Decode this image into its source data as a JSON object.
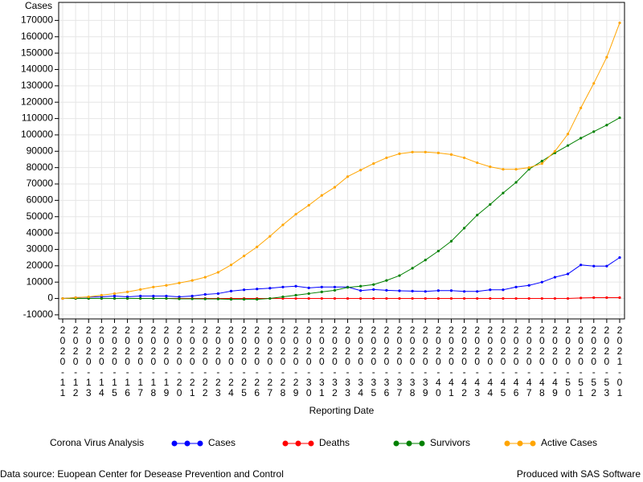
{
  "chart_data": {
    "type": "line",
    "y_label": "Cases",
    "x_label": "Reporting Date",
    "legend_title": "Corona Virus Analysis",
    "source": "Data source: Euopean Center for Desease Prevention and Control",
    "credit": "Produced with SAS Software",
    "categories": [
      "2020-11",
      "2020-12",
      "2020-13",
      "2020-14",
      "2020-15",
      "2020-16",
      "2020-17",
      "2020-18",
      "2020-19",
      "2020-20",
      "2020-21",
      "2020-22",
      "2020-23",
      "2020-24",
      "2020-25",
      "2020-26",
      "2020-27",
      "2020-28",
      "2020-29",
      "2020-30",
      "2020-31",
      "2020-32",
      "2020-33",
      "2020-34",
      "2020-35",
      "2020-36",
      "2020-37",
      "2020-38",
      "2020-39",
      "2020-40",
      "2020-41",
      "2020-42",
      "2020-43",
      "2020-44",
      "2020-45",
      "2020-46",
      "2020-47",
      "2020-48",
      "2020-49",
      "2020-50",
      "2020-51",
      "2020-52",
      "2020-53",
      "2021-01"
    ],
    "series": [
      {
        "name": "Cases",
        "color": "#0000ff",
        "values": [
          0,
          500,
          800,
          1000,
          1500,
          1000,
          1500,
          1500,
          1500,
          1000,
          1500,
          2500,
          3000,
          4500,
          5300,
          5800,
          6300,
          7000,
          7500,
          6500,
          7000,
          7000,
          7000,
          4800,
          5500,
          5000,
          4700,
          4500,
          4300,
          4800,
          4800,
          4300,
          4300,
          5300,
          5300,
          7000,
          8000,
          10000,
          13000,
          15000,
          20500,
          19800,
          19800,
          25000
        ]
      },
      {
        "name": "Deaths",
        "color": "#ff0000",
        "values": [
          0,
          0,
          0,
          0,
          0,
          0,
          0,
          0,
          0,
          0,
          0,
          0,
          0,
          0,
          0,
          0,
          0,
          0,
          0,
          0,
          0,
          0,
          0,
          0,
          0,
          0,
          0,
          0,
          0,
          0,
          0,
          0,
          0,
          0,
          0,
          0,
          0,
          0,
          0,
          0,
          300,
          500,
          500,
          500
        ]
      },
      {
        "name": "Survivors",
        "color": "#008000",
        "values": [
          0,
          0,
          0,
          0,
          0,
          0,
          0,
          0,
          0,
          -200,
          -200,
          -300,
          -300,
          -500,
          -500,
          -500,
          0,
          1000,
          2000,
          3000,
          4000,
          5000,
          6800,
          7500,
          8500,
          11000,
          14000,
          18500,
          23500,
          29000,
          35000,
          43000,
          51000,
          57500,
          64500,
          71000,
          79000,
          84000,
          89000,
          93500,
          98000,
          102000,
          106000,
          110500
        ]
      },
      {
        "name": "Active Cases",
        "color": "#ffa500",
        "values": [
          0,
          500,
          1000,
          2000,
          3000,
          4000,
          5500,
          7000,
          8000,
          9500,
          11000,
          13000,
          16000,
          20500,
          26000,
          31500,
          38000,
          45000,
          51500,
          57000,
          63000,
          68000,
          74500,
          78500,
          82500,
          86000,
          88500,
          89500,
          89500,
          89000,
          88000,
          86000,
          83000,
          80500,
          79000,
          79000,
          80000,
          82500,
          90000,
          100500,
          116500,
          131500,
          147500,
          168500
        ]
      }
    ],
    "ylim": [
      -12500,
      181000
    ],
    "yticks": [
      -10000,
      0,
      10000,
      20000,
      30000,
      40000,
      50000,
      60000,
      70000,
      80000,
      90000,
      100000,
      110000,
      120000,
      130000,
      140000,
      150000,
      160000,
      170000
    ],
    "grid": true
  }
}
